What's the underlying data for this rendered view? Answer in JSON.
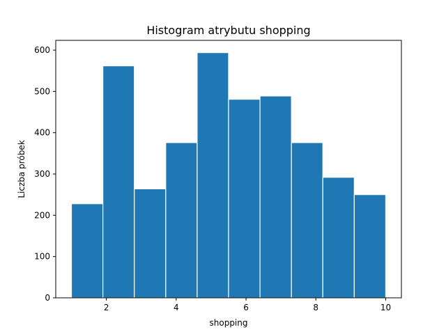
{
  "chart_data": {
    "type": "bar",
    "title": "Histogram atrybutu shopping",
    "xlabel": "shopping",
    "ylabel": "Liczba próbek",
    "bin_edges": [
      1.0,
      1.9,
      2.8,
      3.7,
      4.6,
      5.5,
      6.4,
      7.3,
      8.2,
      9.1,
      10.0
    ],
    "values": [
      228,
      562,
      264,
      376,
      594,
      481,
      489,
      376,
      292,
      250
    ],
    "xlim": [
      0.55,
      10.45
    ],
    "ylim": [
      0,
      623.7
    ],
    "xticks": [
      2,
      4,
      6,
      8,
      10
    ],
    "yticks": [
      0,
      100,
      200,
      300,
      400,
      500,
      600
    ],
    "bar_color": "#1f77b4",
    "edge_color": "#ffffff",
    "grid": false,
    "legend": "none"
  }
}
